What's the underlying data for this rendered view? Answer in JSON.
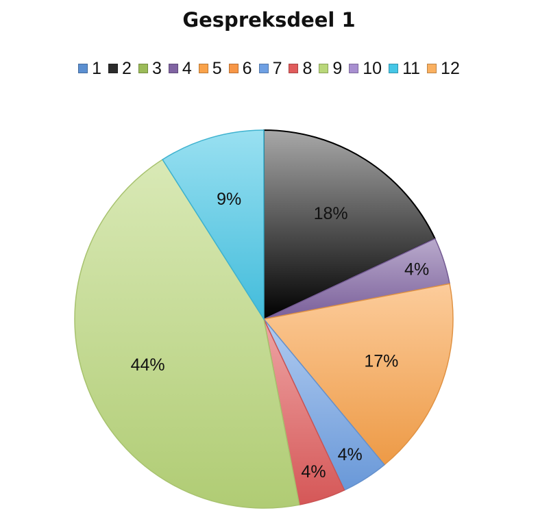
{
  "chart_data": {
    "type": "pie",
    "title": "Gespreksdeel 1",
    "legend_position": "top",
    "categories": [
      "1",
      "2",
      "3",
      "4",
      "5",
      "6",
      "7",
      "8",
      "9",
      "10",
      "11",
      "12"
    ],
    "values": [
      0,
      18,
      0,
      4,
      17,
      0,
      4,
      4,
      44,
      0,
      9,
      0
    ],
    "value_labels": [
      "",
      "18%",
      "",
      "4%",
      "17%",
      "",
      "4%",
      "4%",
      "44%",
      "",
      "9%",
      ""
    ],
    "colors": [
      "#5b8fd1",
      "#2b2b2b",
      "#9bbb59",
      "#8064a2",
      "#f9a24a",
      "#f79646",
      "#6fa0e3",
      "#e05c5c",
      "#b9d77a",
      "#a88fd0",
      "#45c6e6",
      "#fab060"
    ]
  }
}
